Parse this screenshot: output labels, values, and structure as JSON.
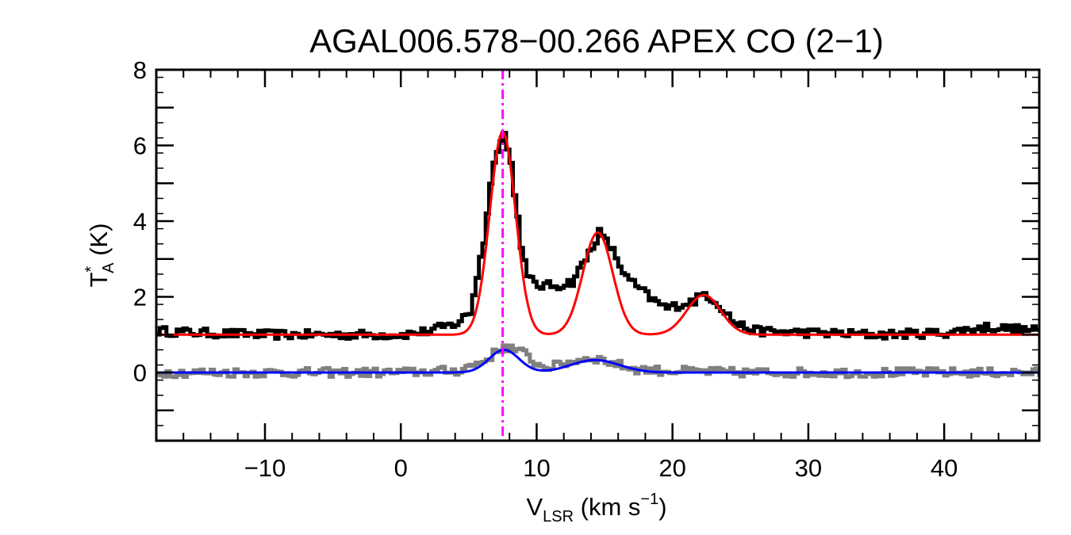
{
  "chart_data": {
    "type": "line",
    "title": "AGAL006.578−00.266  APEX CO (2−1)",
    "xlabel": {
      "main": "V",
      "sub": "LSR",
      "rest": " (km s",
      "sup": "−1",
      "close": ")"
    },
    "ylabel": {
      "main": "T",
      "sup": "*",
      "sub": "A",
      "rest": " (K)"
    },
    "xlim": [
      -18,
      47
    ],
    "ylim": [
      -1.8,
      8
    ],
    "x_ticks": [
      -10,
      0,
      10,
      20,
      30,
      40
    ],
    "x_tick_labels": [
      "−10",
      "0",
      "10",
      "20",
      "30",
      "40"
    ],
    "y_ticks": [
      0,
      2,
      4,
      6,
      8
    ],
    "y_tick_labels": [
      "0",
      "2",
      "4",
      "6",
      "8"
    ],
    "vline": {
      "x": 7.5,
      "color": "#ff00ff",
      "style": "dash-dot"
    },
    "series": [
      {
        "name": "observed spectrum",
        "style": "histogram",
        "color": "#000000",
        "points": [
          [
            -18,
            1.1
          ],
          [
            -15,
            1.05
          ],
          [
            -10,
            1.0
          ],
          [
            -5,
            1.0
          ],
          [
            0,
            1.0
          ],
          [
            2,
            1.1
          ],
          [
            4,
            1.3
          ],
          [
            5,
            1.6
          ],
          [
            6,
            3.5
          ],
          [
            6.8,
            5.8
          ],
          [
            7.5,
            6.3
          ],
          [
            8,
            5.5
          ],
          [
            8.7,
            3.5
          ],
          [
            9.2,
            2.5
          ],
          [
            10,
            2.3
          ],
          [
            11.5,
            2.3
          ],
          [
            12.5,
            2.4
          ],
          [
            13.5,
            3.0
          ],
          [
            14.5,
            3.7
          ],
          [
            15.5,
            3.2
          ],
          [
            16.5,
            2.5
          ],
          [
            17.5,
            2.2
          ],
          [
            18.5,
            1.9
          ],
          [
            19.5,
            1.7
          ],
          [
            20.5,
            1.8
          ],
          [
            21.5,
            1.9
          ],
          [
            22.3,
            2.1
          ],
          [
            23.3,
            1.8
          ],
          [
            24.5,
            1.3
          ],
          [
            26,
            1.1
          ],
          [
            30,
            1.05
          ],
          [
            35,
            1.0
          ],
          [
            40,
            1.05
          ],
          [
            43,
            1.2
          ],
          [
            45,
            1.15
          ],
          [
            47,
            1.1
          ]
        ],
        "noise": 0.12
      },
      {
        "name": "residual spectrum",
        "style": "histogram",
        "color": "#808080",
        "points": [
          [
            -18,
            0.0
          ],
          [
            -10,
            0.0
          ],
          [
            0,
            0.0
          ],
          [
            4,
            0.05
          ],
          [
            6,
            0.3
          ],
          [
            7.5,
            0.7
          ],
          [
            9,
            0.5
          ],
          [
            10,
            0.2
          ],
          [
            11,
            0.15
          ],
          [
            12.5,
            0.3
          ],
          [
            14,
            0.4
          ],
          [
            15.5,
            0.25
          ],
          [
            17,
            0.1
          ],
          [
            19,
            0.05
          ],
          [
            25,
            0.0
          ],
          [
            35,
            0.0
          ],
          [
            47,
            0.0
          ]
        ],
        "noise": 0.12
      },
      {
        "name": "red gaussian fit",
        "style": "line",
        "color": "#ff0000",
        "baseline": 1.0,
        "components": [
          {
            "amp": 5.35,
            "center": 7.5,
            "sigma": 0.95
          },
          {
            "amp": 2.7,
            "center": 14.5,
            "sigma": 1.1
          },
          {
            "amp": 1.05,
            "center": 22.3,
            "sigma": 1.25
          }
        ]
      },
      {
        "name": "blue gaussian fit",
        "style": "line",
        "color": "#0000ff",
        "baseline": 0.0,
        "components": [
          {
            "amp": 0.6,
            "center": 7.6,
            "sigma": 1.1
          },
          {
            "amp": 0.33,
            "center": 14.3,
            "sigma": 1.8
          }
        ]
      }
    ]
  }
}
